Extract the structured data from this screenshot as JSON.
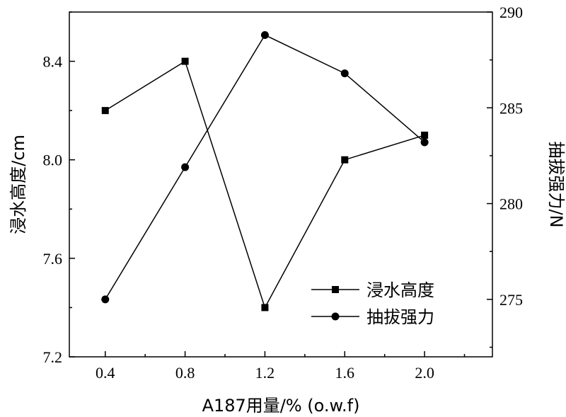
{
  "chart_data": {
    "type": "line",
    "x": [
      0.4,
      0.8,
      1.2,
      1.6,
      2.0
    ],
    "xticks": [
      "0.4",
      "0.8",
      "1.2",
      "1.6",
      "2.0"
    ],
    "xlabel": "A187用量/% (o.w.f)",
    "xlim": [
      0.22,
      2.34
    ],
    "ylabel_left": "浸水高度/cm",
    "ylim_left": [
      7.2,
      8.6
    ],
    "yticks_left": [
      "7.2",
      "7.6",
      "8.0",
      "8.4"
    ],
    "ylabel_right": "抽拔强力/N",
    "ylim_right": [
      272,
      290
    ],
    "yticks_right": [
      "275",
      "280",
      "285",
      "290"
    ],
    "series": [
      {
        "name": "浸水高度",
        "axis": "left",
        "marker": "square",
        "values": [
          8.2,
          8.4,
          7.4,
          8.0,
          8.1
        ]
      },
      {
        "name": "抽拔强力",
        "axis": "right",
        "marker": "circle",
        "values": [
          275.0,
          281.9,
          288.8,
          286.8,
          283.2
        ]
      }
    ],
    "legend_position": "bottom-right",
    "grid": false
  }
}
